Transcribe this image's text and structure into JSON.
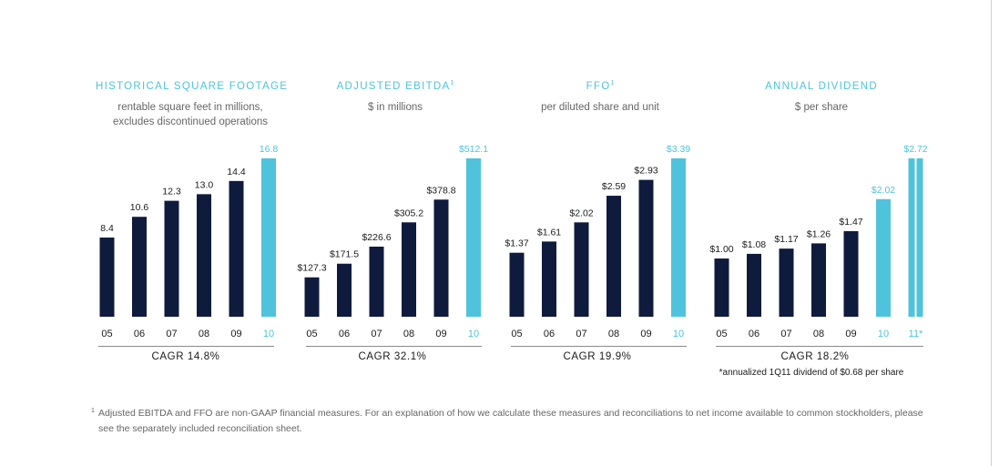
{
  "colors": {
    "dark_bar": "#0f1b3d",
    "highlight_bar": "#4fc3dc",
    "title": "#4fc3dc"
  },
  "panels": [
    {
      "title": "HISTORICAL SQUARE FOOTAGE",
      "title_sup": "",
      "subtitle_lines": [
        "rentable square feet in millions,",
        "excludes discontinued operations"
      ],
      "cagr": "CAGR 14.8%",
      "note": ""
    },
    {
      "title": "ADJUSTED EBITDA",
      "title_sup": "1",
      "subtitle_lines": [
        "$ in millions"
      ],
      "cagr": "CAGR 32.1%",
      "note": ""
    },
    {
      "title": "FFO",
      "title_sup": "1",
      "subtitle_lines": [
        "per diluted share and unit"
      ],
      "cagr": "CAGR 19.9%",
      "note": ""
    },
    {
      "title": "ANNUAL DIVIDEND",
      "title_sup": "",
      "subtitle_lines": [
        "$ per share"
      ],
      "cagr": "CAGR 18.2%",
      "note": "*annualized 1Q11 dividend of $0.68 per share"
    }
  ],
  "chart_data": [
    {
      "type": "bar",
      "title": "HISTORICAL SQUARE FOOTAGE",
      "categories": [
        "05",
        "06",
        "07",
        "08",
        "09",
        "10"
      ],
      "values": [
        8.4,
        10.6,
        12.3,
        13.0,
        14.4,
        16.8
      ],
      "labels": [
        "8.4",
        "10.6",
        "12.3",
        "13.0",
        "14.4",
        "16.8"
      ],
      "highlight": [
        false,
        false,
        false,
        false,
        false,
        true
      ],
      "striped": [
        false,
        false,
        false,
        false,
        false,
        false
      ]
    },
    {
      "type": "bar",
      "title": "ADJUSTED EBITDA",
      "categories": [
        "05",
        "06",
        "07",
        "08",
        "09",
        "10"
      ],
      "values": [
        127.3,
        171.5,
        226.6,
        305.2,
        378.8,
        512.1
      ],
      "labels": [
        "$127.3",
        "$171.5",
        "$226.6",
        "$305.2",
        "$378.8",
        "$512.1"
      ],
      "highlight": [
        false,
        false,
        false,
        false,
        false,
        true
      ],
      "striped": [
        false,
        false,
        false,
        false,
        false,
        false
      ]
    },
    {
      "type": "bar",
      "title": "FFO",
      "categories": [
        "05",
        "06",
        "07",
        "08",
        "09",
        "10"
      ],
      "values": [
        1.37,
        1.61,
        2.02,
        2.59,
        2.93,
        3.39
      ],
      "labels": [
        "$1.37",
        "$1.61",
        "$2.02",
        "$2.59",
        "$2.93",
        "$3.39"
      ],
      "highlight": [
        false,
        false,
        false,
        false,
        false,
        true
      ],
      "striped": [
        false,
        false,
        false,
        false,
        false,
        false
      ]
    },
    {
      "type": "bar",
      "title": "ANNUAL DIVIDEND",
      "categories": [
        "05",
        "06",
        "07",
        "08",
        "09",
        "10",
        "11*"
      ],
      "values": [
        1.0,
        1.08,
        1.17,
        1.26,
        1.47,
        2.02,
        2.72
      ],
      "labels": [
        "$1.00",
        "$1.08",
        "$1.17",
        "$1.26",
        "$1.47",
        "$2.02",
        "$2.72"
      ],
      "highlight": [
        false,
        false,
        false,
        false,
        false,
        true,
        true
      ],
      "striped": [
        false,
        false,
        false,
        false,
        false,
        false,
        true
      ]
    }
  ],
  "footnote": {
    "mark": "1",
    "text": "Adjusted EBITDA and FFO are non-GAAP financial measures. For an explanation of how we calculate these measures and reconciliations to net income available to common stockholders, please see the separately included reconciliation sheet."
  }
}
